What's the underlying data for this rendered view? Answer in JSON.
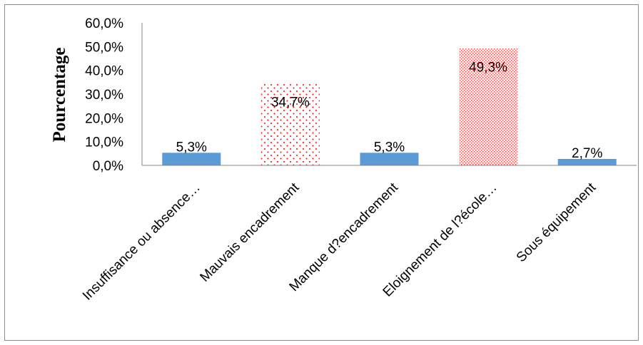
{
  "chart_data": {
    "type": "bar",
    "title": "",
    "xlabel": "",
    "ylabel": "Pourcentage",
    "ylim": [
      0,
      60
    ],
    "y_tick_step": 10,
    "y_tick_labels": [
      "0,0%",
      "10,0%",
      "20,0%",
      "30,0%",
      "40,0%",
      "50,0%",
      "60,0%"
    ],
    "grid": false,
    "legend": "none",
    "categories": [
      "Insuffisance ou absence…",
      "Mauvais encadrement",
      "Manque d?encadrement",
      "Eloignement de l?école…",
      "Sous équipement"
    ],
    "values": [
      5.3,
      34.7,
      5.3,
      49.3,
      2.7
    ],
    "data_labels": [
      "5,3%",
      "34,7%",
      "5,3%",
      "49,3%",
      "2,7%"
    ],
    "bar_styles": [
      "solid",
      "dotted",
      "solid",
      "dotted-dense",
      "solid"
    ],
    "colors": {
      "solid": "#5b9bd5",
      "dotted": "#ff0000",
      "axis": "#868686"
    }
  }
}
